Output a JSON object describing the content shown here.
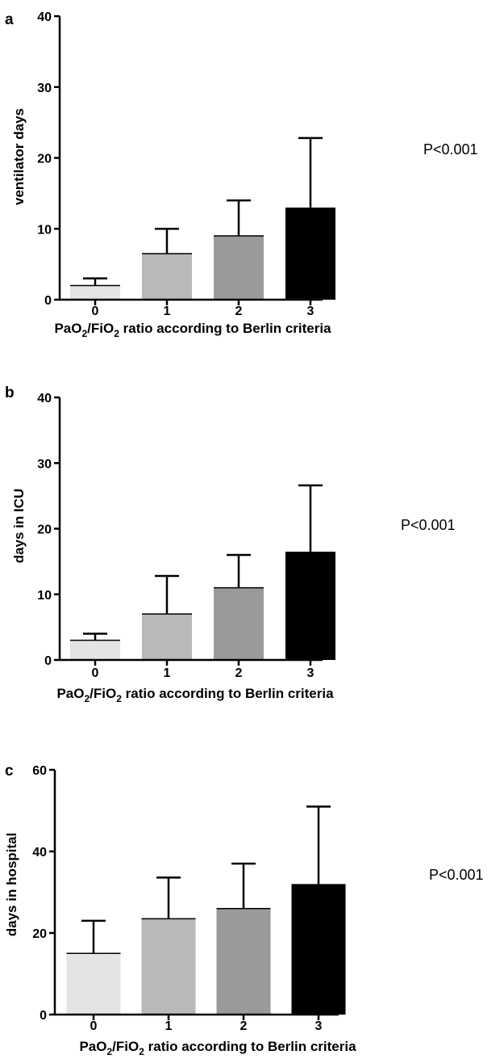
{
  "chart_data": [
    {
      "type": "bar",
      "panel_label": "a",
      "categories": [
        "0",
        "1",
        "2",
        "3"
      ],
      "values": [
        2,
        6.5,
        9,
        13
      ],
      "error_upper": [
        3,
        10,
        14,
        22.8
      ],
      "colors": [
        "#e4e4e4",
        "#b9b9b9",
        "#9a9a9a",
        "#000000"
      ],
      "ylabel": "ventilator days",
      "xlabel": {
        "p1": "PaO",
        "s1": "2",
        "p2": "/FiO",
        "s2": "2",
        "p3": " ratio according to Berlin criteria"
      },
      "ylim": [
        0,
        40
      ],
      "yticks": [
        0,
        10,
        20,
        30,
        40
      ],
      "annotation": "P<0.001"
    },
    {
      "type": "bar",
      "panel_label": "b",
      "categories": [
        "0",
        "1",
        "2",
        "3"
      ],
      "values": [
        3,
        7,
        11,
        16.5
      ],
      "error_upper": [
        4,
        12.8,
        16,
        26.6
      ],
      "colors": [
        "#e4e4e4",
        "#b9b9b9",
        "#9a9a9a",
        "#000000"
      ],
      "ylabel": "days in ICU",
      "xlabel": {
        "p1": "PaO",
        "s1": "2",
        "p2": "/FiO",
        "s2": "2",
        "p3": " ratio according to Berlin criteria"
      },
      "ylim": [
        0,
        40
      ],
      "yticks": [
        0,
        10,
        20,
        30,
        40
      ],
      "annotation": "P<0.001"
    },
    {
      "type": "bar",
      "panel_label": "c",
      "categories": [
        "0",
        "1",
        "2",
        "3"
      ],
      "values": [
        15,
        23.5,
        26,
        32
      ],
      "error_upper": [
        23,
        33.6,
        37,
        51
      ],
      "colors": [
        "#e4e4e4",
        "#b9b9b9",
        "#9a9a9a",
        "#000000"
      ],
      "ylabel": "days in hospital",
      "xlabel": {
        "p1": "PaO",
        "s1": "2",
        "p2": "/FiO",
        "s2": "2",
        "p3": " ratio according to Berlin criteria"
      },
      "ylim": [
        0,
        60
      ],
      "yticks": [
        0,
        20,
        40,
        60
      ],
      "annotation": "P<0.001"
    }
  ]
}
